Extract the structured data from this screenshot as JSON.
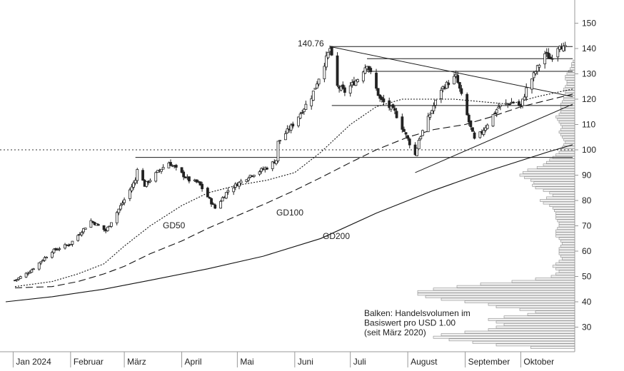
{
  "chart_data": {
    "type": "candlestick",
    "y_axis": {
      "ticks": [
        30,
        40,
        50,
        60,
        70,
        80,
        90,
        100,
        110,
        120,
        130,
        140,
        150
      ],
      "range": [
        20.5,
        155
      ]
    },
    "x_axis": {
      "labels": [
        "Jan 2024",
        "Februar",
        "März",
        "April",
        "Mai",
        "Juni",
        "Juli",
        "August",
        "September",
        "Oktober"
      ],
      "months": [
        "2024-01",
        "2024-02",
        "2024-03",
        "2024-04",
        "2024-05",
        "2024-06",
        "2024-07",
        "2024-08",
        "2024-09",
        "2024-10"
      ]
    },
    "price_anchors": [
      [
        "2024-01-02",
        48.5
      ],
      [
        "2024-01-10",
        52
      ],
      [
        "2024-01-22",
        60
      ],
      [
        "2024-02-01",
        63
      ],
      [
        "2024-02-12",
        72
      ],
      [
        "2024-02-20",
        68
      ],
      [
        "2024-02-29",
        79
      ],
      [
        "2024-03-07",
        88
      ],
      [
        "2024-03-08",
        93
      ],
      [
        "2024-03-12",
        86
      ],
      [
        "2024-03-20",
        92
      ],
      [
        "2024-03-25",
        95
      ],
      [
        "2024-04-05",
        88
      ],
      [
        "2024-04-10",
        87
      ],
      [
        "2024-04-19",
        77
      ],
      [
        "2024-04-26",
        84
      ],
      [
        "2024-05-08",
        90
      ],
      [
        "2024-05-17",
        93
      ],
      [
        "2024-05-22",
        96
      ],
      [
        "2024-05-23",
        103
      ],
      [
        "2024-05-31",
        110
      ],
      [
        "2024-06-10",
        121
      ],
      [
        "2024-06-18",
        136
      ],
      [
        "2024-06-20",
        140
      ],
      [
        "2024-06-24",
        125
      ],
      [
        "2024-06-28",
        123
      ],
      [
        "2024-07-05",
        128
      ],
      [
        "2024-07-10",
        134
      ],
      [
        "2024-07-17",
        120
      ],
      [
        "2024-07-25",
        115
      ],
      [
        "2024-08-05",
        98
      ],
      [
        "2024-08-07",
        104
      ],
      [
        "2024-08-19",
        124
      ],
      [
        "2024-08-27",
        129
      ],
      [
        "2024-09-03",
        111
      ],
      [
        "2024-09-06",
        104
      ],
      [
        "2024-09-10",
        107
      ],
      [
        "2024-09-19",
        117
      ],
      [
        "2024-09-27",
        119
      ],
      [
        "2024-10-01",
        117
      ],
      [
        "2024-10-04",
        124
      ],
      [
        "2024-10-09",
        131
      ],
      [
        "2024-10-14",
        138
      ],
      [
        "2024-10-17",
        136
      ],
      [
        "2024-10-22",
        142
      ],
      [
        "2024-10-24",
        140
      ]
    ],
    "moving_averages": [
      {
        "name": "GD50",
        "style": "dotted",
        "points": [
          [
            "2024-01-02",
            46
          ],
          [
            "2024-01-22",
            48
          ],
          [
            "2024-02-05",
            51
          ],
          [
            "2024-02-19",
            55
          ],
          [
            "2024-03-01",
            62
          ],
          [
            "2024-03-15",
            70
          ],
          [
            "2024-04-01",
            78
          ],
          [
            "2024-04-15",
            83
          ],
          [
            "2024-05-01",
            86
          ],
          [
            "2024-05-17",
            88
          ],
          [
            "2024-06-01",
            91
          ],
          [
            "2024-06-15",
            99
          ],
          [
            "2024-07-01",
            110
          ],
          [
            "2024-07-15",
            117
          ],
          [
            "2024-07-29",
            120
          ],
          [
            "2024-08-12",
            120
          ],
          [
            "2024-08-26",
            120
          ],
          [
            "2024-09-10",
            119
          ],
          [
            "2024-09-25",
            118
          ],
          [
            "2024-10-10",
            121
          ],
          [
            "2024-10-29",
            124
          ]
        ]
      },
      {
        "name": "GD100",
        "style": "dashed",
        "points": [
          [
            "2024-01-02",
            45.5
          ],
          [
            "2024-01-22",
            46
          ],
          [
            "2024-02-05",
            48
          ],
          [
            "2024-02-19",
            51
          ],
          [
            "2024-03-01",
            54
          ],
          [
            "2024-03-15",
            59
          ],
          [
            "2024-04-01",
            64
          ],
          [
            "2024-04-15",
            69
          ],
          [
            "2024-05-01",
            74
          ],
          [
            "2024-05-17",
            79
          ],
          [
            "2024-06-01",
            84
          ],
          [
            "2024-06-15",
            89
          ],
          [
            "2024-07-01",
            95
          ],
          [
            "2024-07-15",
            100
          ],
          [
            "2024-08-01",
            105
          ],
          [
            "2024-08-15",
            108
          ],
          [
            "2024-09-01",
            110
          ],
          [
            "2024-09-15",
            113
          ],
          [
            "2024-10-01",
            117
          ],
          [
            "2024-10-29",
            122
          ]
        ]
      },
      {
        "name": "GD200",
        "style": "solid",
        "points": [
          [
            "2023-12-28",
            40
          ],
          [
            "2024-01-22",
            42
          ],
          [
            "2024-02-19",
            45
          ],
          [
            "2024-03-15",
            48.5
          ],
          [
            "2024-04-15",
            53
          ],
          [
            "2024-05-15",
            58
          ],
          [
            "2024-06-15",
            65
          ],
          [
            "2024-07-15",
            75
          ],
          [
            "2024-08-15",
            84
          ],
          [
            "2024-09-15",
            92
          ],
          [
            "2024-10-15",
            99
          ],
          [
            "2024-10-29",
            102
          ]
        ]
      }
    ],
    "annotations": {
      "peak_label": "140.76",
      "dotted_reference_level": 100,
      "horizontal_lines": [
        {
          "level": 97,
          "from": "2024-03-07",
          "to": "2024-10-29"
        },
        {
          "level": 140.76,
          "from": "2024-06-20",
          "to": "2024-10-29"
        },
        {
          "level": 136,
          "from": "2024-07-10",
          "to": "2024-10-29"
        },
        {
          "level": 131,
          "from": "2024-07-10",
          "to": "2024-10-29"
        },
        {
          "level": 117.5,
          "from": "2024-06-21",
          "to": "2024-10-29"
        }
      ],
      "trend_lines": [
        {
          "from": [
            "2024-06-20",
            140.76
          ],
          "to": [
            "2024-10-29",
            121
          ]
        },
        {
          "from": [
            "2024-08-05",
            91
          ],
          "to": [
            "2024-10-29",
            118
          ]
        }
      ],
      "note": [
        "Balken: Handelsvolumen im",
        "Basiswert pro USD 1.00",
        "(seit März 2020)"
      ]
    },
    "volume_profile": [
      [
        22,
        0.28
      ],
      [
        23,
        0.5
      ],
      [
        24,
        0.65
      ],
      [
        25,
        0.8
      ],
      [
        26,
        0.9
      ],
      [
        27,
        0.85
      ],
      [
        28,
        0.7
      ],
      [
        29,
        0.55
      ],
      [
        30,
        0.5
      ],
      [
        31,
        0.45
      ],
      [
        32,
        0.5
      ],
      [
        33,
        0.55
      ],
      [
        34,
        0.45
      ],
      [
        35,
        0.3
      ],
      [
        36,
        0.25
      ],
      [
        37,
        0.35
      ],
      [
        38,
        0.5
      ],
      [
        39,
        0.55
      ],
      [
        40,
        0.7
      ],
      [
        41,
        0.85
      ],
      [
        42,
        0.95
      ],
      [
        43,
        1.0
      ],
      [
        44,
        1.0
      ],
      [
        45,
        0.9
      ],
      [
        46,
        0.75
      ],
      [
        47,
        0.6
      ],
      [
        48,
        0.4
      ],
      [
        49,
        0.25
      ],
      [
        50,
        0.15
      ],
      [
        51,
        0.12
      ],
      [
        52,
        0.1
      ],
      [
        53,
        0.12
      ],
      [
        54,
        0.14
      ],
      [
        55,
        0.12
      ],
      [
        56,
        0.1
      ],
      [
        57,
        0.08
      ],
      [
        58,
        0.09
      ],
      [
        59,
        0.1
      ],
      [
        60,
        0.1
      ],
      [
        61,
        0.1
      ],
      [
        62,
        0.09
      ],
      [
        63,
        0.08
      ],
      [
        64,
        0.09
      ],
      [
        65,
        0.1
      ],
      [
        66,
        0.12
      ],
      [
        67,
        0.12
      ],
      [
        68,
        0.12
      ],
      [
        69,
        0.11
      ],
      [
        70,
        0.1
      ],
      [
        71,
        0.1
      ],
      [
        72,
        0.11
      ],
      [
        73,
        0.12
      ],
      [
        74,
        0.12
      ],
      [
        75,
        0.12
      ],
      [
        76,
        0.13
      ],
      [
        77,
        0.14
      ],
      [
        78,
        0.16
      ],
      [
        79,
        0.2
      ],
      [
        80,
        0.22
      ],
      [
        81,
        0.18
      ],
      [
        82,
        0.14
      ],
      [
        83,
        0.16
      ],
      [
        84,
        0.2
      ],
      [
        85,
        0.25
      ],
      [
        86,
        0.27
      ],
      [
        87,
        0.26
      ],
      [
        88,
        0.28
      ],
      [
        89,
        0.32
      ],
      [
        90,
        0.35
      ],
      [
        91,
        0.33
      ],
      [
        92,
        0.3
      ],
      [
        93,
        0.24
      ],
      [
        94,
        0.2
      ],
      [
        95,
        0.18
      ],
      [
        96,
        0.16
      ],
      [
        97,
        0.14
      ],
      [
        98,
        0.12
      ],
      [
        99,
        0.1
      ],
      [
        100,
        0.09
      ],
      [
        101,
        0.08
      ],
      [
        102,
        0.07
      ],
      [
        103,
        0.06
      ],
      [
        104,
        0.07
      ],
      [
        105,
        0.08
      ],
      [
        106,
        0.09
      ],
      [
        107,
        0.1
      ],
      [
        108,
        0.09
      ],
      [
        109,
        0.08
      ],
      [
        110,
        0.09
      ],
      [
        111,
        0.1
      ],
      [
        112,
        0.11
      ],
      [
        113,
        0.12
      ],
      [
        114,
        0.1
      ],
      [
        115,
        0.09
      ],
      [
        116,
        0.09
      ],
      [
        117,
        0.09
      ],
      [
        118,
        0.09
      ],
      [
        119,
        0.08
      ],
      [
        120,
        0.07
      ],
      [
        121,
        0.07
      ],
      [
        122,
        0.06
      ],
      [
        123,
        0.06
      ],
      [
        124,
        0.07
      ],
      [
        125,
        0.06
      ],
      [
        126,
        0.05
      ],
      [
        127,
        0.05
      ],
      [
        128,
        0.06
      ],
      [
        129,
        0.06
      ],
      [
        130,
        0.05
      ],
      [
        131,
        0.04
      ],
      [
        132,
        0.03
      ],
      [
        133,
        0.02
      ],
      [
        134,
        0.02
      ],
      [
        135,
        0.01
      ]
    ]
  }
}
